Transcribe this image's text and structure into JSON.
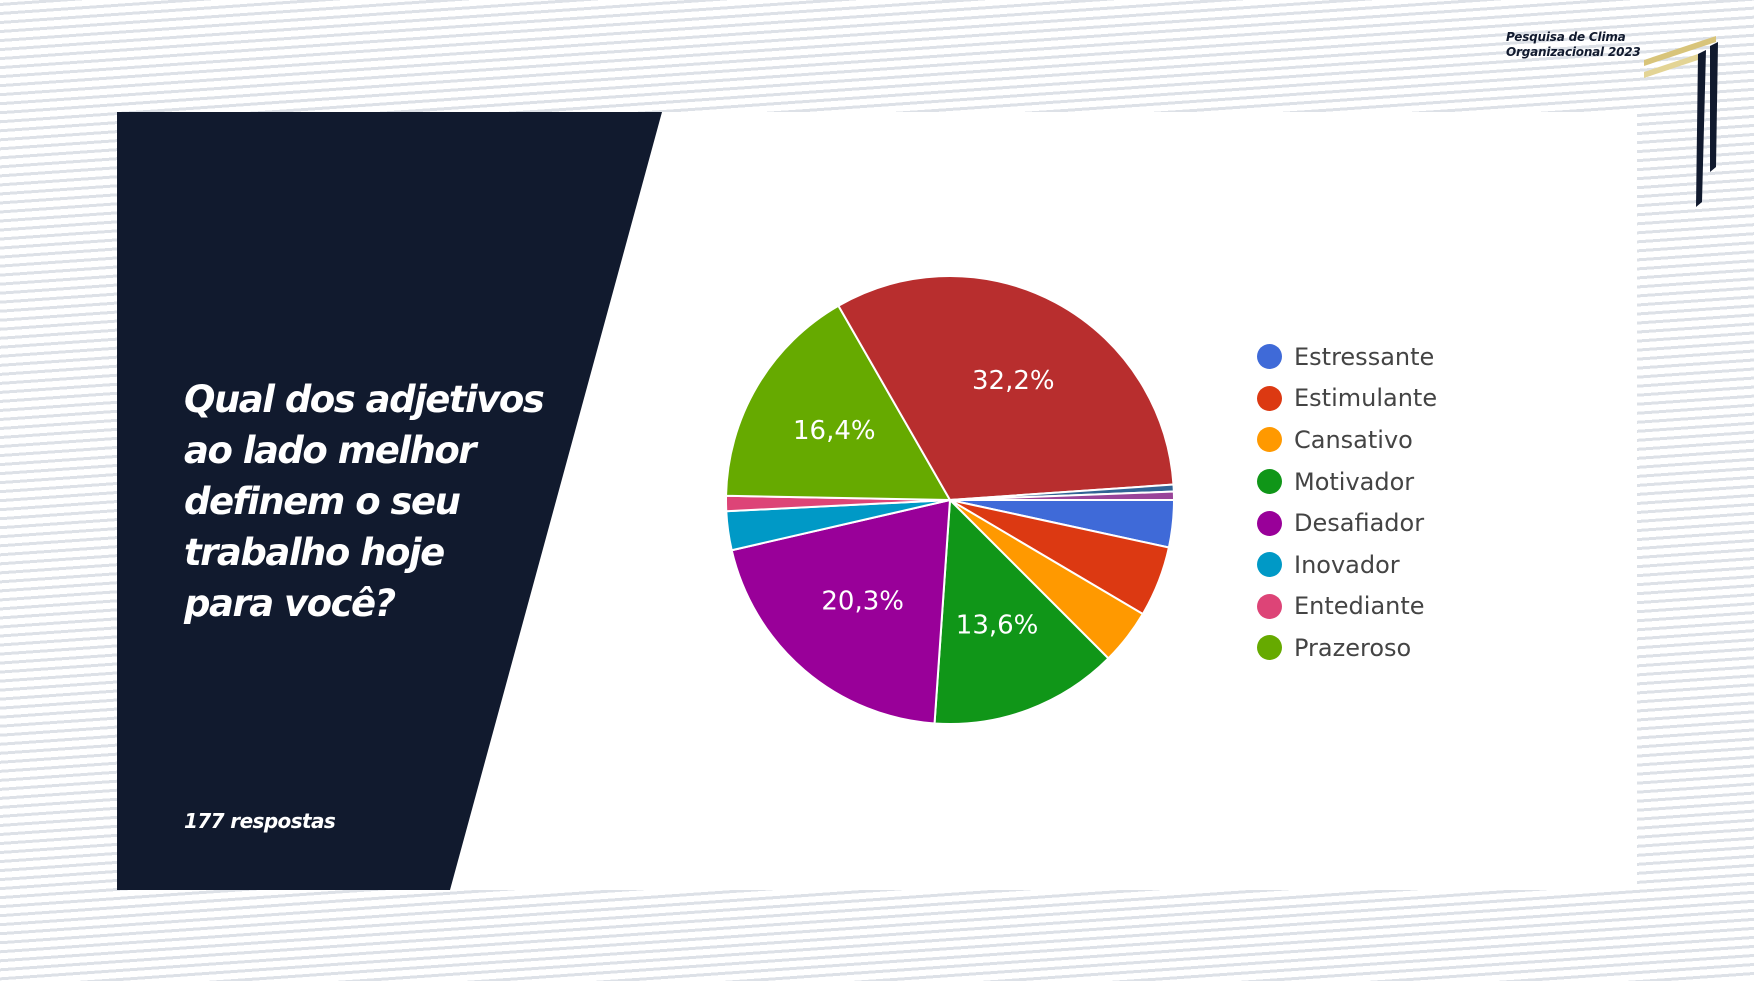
{
  "header": {
    "brand_line1": "Pesquisa de Clima",
    "brand_line2": "Organizacional 2023",
    "logo_colors": {
      "gold": "#d8c47a",
      "navy": "#111a2e"
    }
  },
  "panel": {
    "background": "#111a2e",
    "question_lines": [
      "Qual dos adjetivos",
      "ao lado melhor",
      "definem o seu",
      "trabalho hoje",
      "para você?"
    ],
    "responses": "177 respostas"
  },
  "chart_data": {
    "type": "pie",
    "title": "",
    "total_responses": 177,
    "legend_position": "right",
    "slices": [
      {
        "label": "Estressante",
        "value": 3.4,
        "color": "#3f6ad8",
        "data_label": ""
      },
      {
        "label": "Estimulante",
        "value": 5.1,
        "color": "#dc3912",
        "data_label": ""
      },
      {
        "label": "Cansativo",
        "value": 4.0,
        "color": "#ff9900",
        "data_label": ""
      },
      {
        "label": "Motivador",
        "value": 13.6,
        "color": "#109618",
        "data_label": "13,6%"
      },
      {
        "label": "Desafiador",
        "value": 20.3,
        "color": "#990099",
        "data_label": "20,3%"
      },
      {
        "label": "Inovador",
        "value": 2.8,
        "color": "#0099c6",
        "data_label": ""
      },
      {
        "label": "Entediante",
        "value": 1.1,
        "color": "#dd4477",
        "data_label": ""
      },
      {
        "label": "Prazeroso",
        "value": 16.4,
        "color": "#66aa00",
        "data_label": "16,4%"
      },
      {
        "label": "",
        "value": 32.2,
        "color": "#b82e2e",
        "data_label": "32,2%"
      },
      {
        "label": "",
        "value": 0.5,
        "color": "#316395",
        "data_label": ""
      },
      {
        "label": "",
        "value": 0.6,
        "color": "#994499",
        "data_label": ""
      }
    ]
  }
}
